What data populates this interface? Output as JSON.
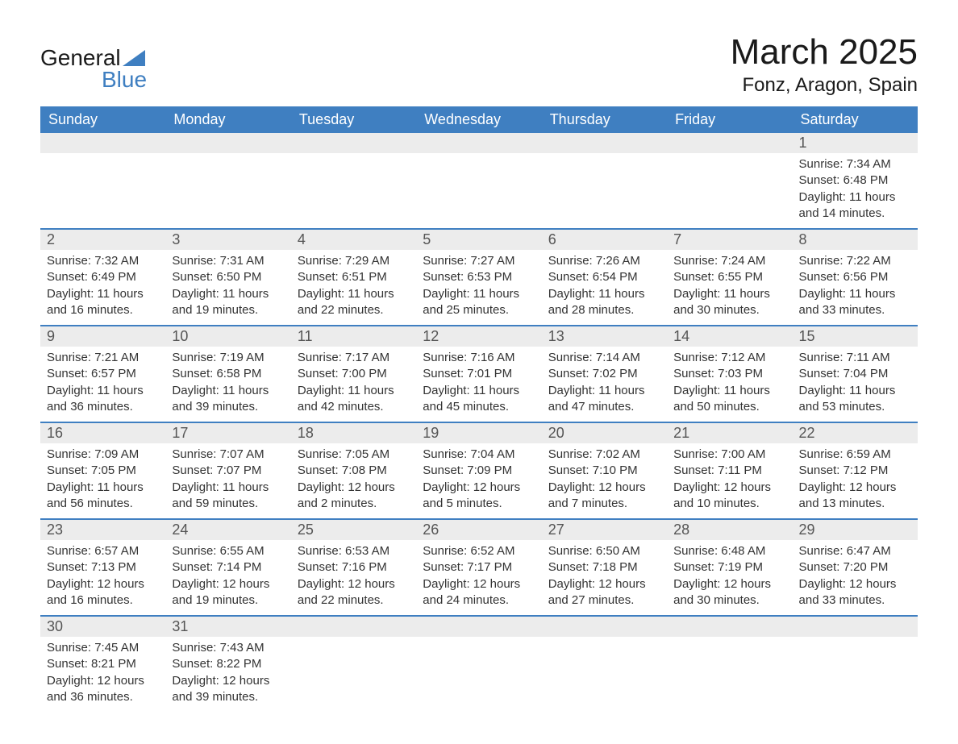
{
  "logo": {
    "line1": "General",
    "line2": "Blue",
    "brand_color": "#3f7fc1"
  },
  "title": "March 2025",
  "location": "Fonz, Aragon, Spain",
  "colors": {
    "header_bg": "#3f7fc1",
    "header_text": "#ffffff",
    "daynum_bg": "#ececec",
    "row_border": "#3f7fc1",
    "body_text": "#333333",
    "page_bg": "#ffffff"
  },
  "typography": {
    "title_fontsize": 44,
    "location_fontsize": 24,
    "weekday_fontsize": 18,
    "daynum_fontsize": 18,
    "detail_fontsize": 15
  },
  "weekdays": [
    "Sunday",
    "Monday",
    "Tuesday",
    "Wednesday",
    "Thursday",
    "Friday",
    "Saturday"
  ],
  "weeks": [
    [
      null,
      null,
      null,
      null,
      null,
      null,
      {
        "n": "1",
        "sunrise": "7:34 AM",
        "sunset": "6:48 PM",
        "daylight": "11 hours and 14 minutes."
      }
    ],
    [
      {
        "n": "2",
        "sunrise": "7:32 AM",
        "sunset": "6:49 PM",
        "daylight": "11 hours and 16 minutes."
      },
      {
        "n": "3",
        "sunrise": "7:31 AM",
        "sunset": "6:50 PM",
        "daylight": "11 hours and 19 minutes."
      },
      {
        "n": "4",
        "sunrise": "7:29 AM",
        "sunset": "6:51 PM",
        "daylight": "11 hours and 22 minutes."
      },
      {
        "n": "5",
        "sunrise": "7:27 AM",
        "sunset": "6:53 PM",
        "daylight": "11 hours and 25 minutes."
      },
      {
        "n": "6",
        "sunrise": "7:26 AM",
        "sunset": "6:54 PM",
        "daylight": "11 hours and 28 minutes."
      },
      {
        "n": "7",
        "sunrise": "7:24 AM",
        "sunset": "6:55 PM",
        "daylight": "11 hours and 30 minutes."
      },
      {
        "n": "8",
        "sunrise": "7:22 AM",
        "sunset": "6:56 PM",
        "daylight": "11 hours and 33 minutes."
      }
    ],
    [
      {
        "n": "9",
        "sunrise": "7:21 AM",
        "sunset": "6:57 PM",
        "daylight": "11 hours and 36 minutes."
      },
      {
        "n": "10",
        "sunrise": "7:19 AM",
        "sunset": "6:58 PM",
        "daylight": "11 hours and 39 minutes."
      },
      {
        "n": "11",
        "sunrise": "7:17 AM",
        "sunset": "7:00 PM",
        "daylight": "11 hours and 42 minutes."
      },
      {
        "n": "12",
        "sunrise": "7:16 AM",
        "sunset": "7:01 PM",
        "daylight": "11 hours and 45 minutes."
      },
      {
        "n": "13",
        "sunrise": "7:14 AM",
        "sunset": "7:02 PM",
        "daylight": "11 hours and 47 minutes."
      },
      {
        "n": "14",
        "sunrise": "7:12 AM",
        "sunset": "7:03 PM",
        "daylight": "11 hours and 50 minutes."
      },
      {
        "n": "15",
        "sunrise": "7:11 AM",
        "sunset": "7:04 PM",
        "daylight": "11 hours and 53 minutes."
      }
    ],
    [
      {
        "n": "16",
        "sunrise": "7:09 AM",
        "sunset": "7:05 PM",
        "daylight": "11 hours and 56 minutes."
      },
      {
        "n": "17",
        "sunrise": "7:07 AM",
        "sunset": "7:07 PM",
        "daylight": "11 hours and 59 minutes."
      },
      {
        "n": "18",
        "sunrise": "7:05 AM",
        "sunset": "7:08 PM",
        "daylight": "12 hours and 2 minutes."
      },
      {
        "n": "19",
        "sunrise": "7:04 AM",
        "sunset": "7:09 PM",
        "daylight": "12 hours and 5 minutes."
      },
      {
        "n": "20",
        "sunrise": "7:02 AM",
        "sunset": "7:10 PM",
        "daylight": "12 hours and 7 minutes."
      },
      {
        "n": "21",
        "sunrise": "7:00 AM",
        "sunset": "7:11 PM",
        "daylight": "12 hours and 10 minutes."
      },
      {
        "n": "22",
        "sunrise": "6:59 AM",
        "sunset": "7:12 PM",
        "daylight": "12 hours and 13 minutes."
      }
    ],
    [
      {
        "n": "23",
        "sunrise": "6:57 AM",
        "sunset": "7:13 PM",
        "daylight": "12 hours and 16 minutes."
      },
      {
        "n": "24",
        "sunrise": "6:55 AM",
        "sunset": "7:14 PM",
        "daylight": "12 hours and 19 minutes."
      },
      {
        "n": "25",
        "sunrise": "6:53 AM",
        "sunset": "7:16 PM",
        "daylight": "12 hours and 22 minutes."
      },
      {
        "n": "26",
        "sunrise": "6:52 AM",
        "sunset": "7:17 PM",
        "daylight": "12 hours and 24 minutes."
      },
      {
        "n": "27",
        "sunrise": "6:50 AM",
        "sunset": "7:18 PM",
        "daylight": "12 hours and 27 minutes."
      },
      {
        "n": "28",
        "sunrise": "6:48 AM",
        "sunset": "7:19 PM",
        "daylight": "12 hours and 30 minutes."
      },
      {
        "n": "29",
        "sunrise": "6:47 AM",
        "sunset": "7:20 PM",
        "daylight": "12 hours and 33 minutes."
      }
    ],
    [
      {
        "n": "30",
        "sunrise": "7:45 AM",
        "sunset": "8:21 PM",
        "daylight": "12 hours and 36 minutes."
      },
      {
        "n": "31",
        "sunrise": "7:43 AM",
        "sunset": "8:22 PM",
        "daylight": "12 hours and 39 minutes."
      },
      null,
      null,
      null,
      null,
      null
    ]
  ],
  "labels": {
    "sunrise": "Sunrise: ",
    "sunset": "Sunset: ",
    "daylight": "Daylight: "
  }
}
